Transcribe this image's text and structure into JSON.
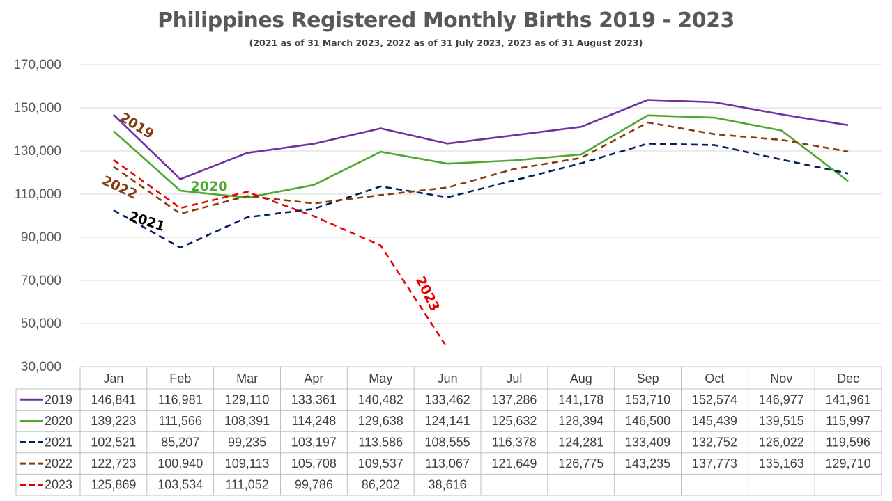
{
  "chart_data": {
    "type": "line",
    "title": "Philippines Registered Monthly Births 2019 - 2023",
    "subtitle": "(2021 as of 31 March 2023, 2022 as of 31 July 2023, 2023 as of 31 August 2023)",
    "categories": [
      "Jan",
      "Feb",
      "Mar",
      "Apr",
      "May",
      "Jun",
      "Jul",
      "Aug",
      "Sep",
      "Oct",
      "Nov",
      "Dec"
    ],
    "ylim": [
      30000,
      170000
    ],
    "yticks": [
      30000,
      50000,
      70000,
      90000,
      110000,
      130000,
      150000,
      170000
    ],
    "ytick_labels": [
      "30,000",
      "50,000",
      "70,000",
      "90,000",
      "110,000",
      "130,000",
      "150,000",
      "170,000"
    ],
    "grid": true,
    "legend": "data-table",
    "series": [
      {
        "name": "2019",
        "color": "#7030a0",
        "dashed": false,
        "values": [
          146841,
          116981,
          129110,
          133361,
          140482,
          133462,
          137286,
          141178,
          153710,
          152574,
          146977,
          141961
        ],
        "labels": [
          "146,841",
          "116,981",
          "129,110",
          "133,361",
          "140,482",
          "133,462",
          "137,286",
          "141,178",
          "153,710",
          "152,574",
          "146,977",
          "141,961"
        ]
      },
      {
        "name": "2020",
        "color": "#4ea72e",
        "dashed": false,
        "values": [
          139223,
          111566,
          108391,
          114248,
          129638,
          124141,
          125632,
          128394,
          146500,
          145439,
          139515,
          115997
        ],
        "labels": [
          "139,223",
          "111,566",
          "108,391",
          "114,248",
          "129,638",
          "124,141",
          "125,632",
          "128,394",
          "146,500",
          "145,439",
          "139,515",
          "115,997"
        ]
      },
      {
        "name": "2021",
        "color": "#002060",
        "dashed": true,
        "values": [
          102521,
          85207,
          99235,
          103197,
          113586,
          108555,
          116378,
          124281,
          133409,
          132752,
          126022,
          119596
        ],
        "labels": [
          "102,521",
          "85,207",
          "99,235",
          "103,197",
          "113,586",
          "108,555",
          "116,378",
          "124,281",
          "133,409",
          "132,752",
          "126,022",
          "119,596"
        ]
      },
      {
        "name": "2022",
        "color": "#843c0c",
        "dashed": true,
        "values": [
          122723,
          100940,
          109113,
          105708,
          109537,
          113067,
          121649,
          126775,
          143235,
          137773,
          135163,
          129710
        ],
        "labels": [
          "122,723",
          "100,940",
          "109,113",
          "105,708",
          "109,537",
          "113,067",
          "121,649",
          "126,775",
          "143,235",
          "137,773",
          "135,163",
          "129,710"
        ]
      },
      {
        "name": "2023",
        "color": "#ee0000",
        "dashed": true,
        "values": [
          125869,
          103534,
          111052,
          99786,
          86202,
          38616,
          null,
          null,
          null,
          null,
          null,
          null
        ],
        "labels": [
          "125,869",
          "103,534",
          "111,052",
          "99,786",
          "86,202",
          "38,616",
          "",
          "",
          "",
          "",
          "",
          ""
        ]
      }
    ],
    "annotations": [
      {
        "text": "2019",
        "color": "#843c0c"
      },
      {
        "text": "2020",
        "color": "#4ea72e"
      },
      {
        "text": "2021",
        "color": "#000000"
      },
      {
        "text": "2022",
        "color": "#843c0c"
      },
      {
        "text": "2023",
        "color": "#ee0000"
      }
    ]
  }
}
